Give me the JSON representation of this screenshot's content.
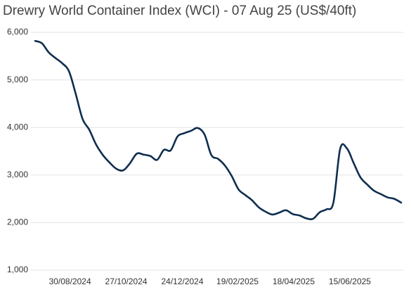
{
  "chart_data": {
    "type": "line",
    "title": "Drewry World Container Index (WCI) - 07 Aug 25 (US$/40ft)",
    "x": [
      "2024-07-25",
      "2024-08-01",
      "2024-08-08",
      "2024-08-15",
      "2024-08-22",
      "2024-08-29",
      "2024-09-05",
      "2024-09-12",
      "2024-09-19",
      "2024-09-26",
      "2024-10-03",
      "2024-10-10",
      "2024-10-17",
      "2024-10-24",
      "2024-10-31",
      "2024-11-07",
      "2024-11-14",
      "2024-11-21",
      "2024-11-28",
      "2024-12-05",
      "2024-12-12",
      "2024-12-19",
      "2024-12-26",
      "2025-01-02",
      "2025-01-09",
      "2025-01-16",
      "2025-01-23",
      "2025-01-30",
      "2025-02-06",
      "2025-02-13",
      "2025-02-20",
      "2025-02-27",
      "2025-03-06",
      "2025-03-13",
      "2025-03-20",
      "2025-03-27",
      "2025-04-03",
      "2025-04-10",
      "2025-04-17",
      "2025-04-24",
      "2025-05-01",
      "2025-05-08",
      "2025-05-15",
      "2025-05-22",
      "2025-05-29",
      "2025-06-05",
      "2025-06-12",
      "2025-06-19",
      "2025-06-26",
      "2025-07-03",
      "2025-07-10",
      "2025-07-17",
      "2025-07-24",
      "2025-07-31",
      "2025-08-07"
    ],
    "series": [
      {
        "name": "WCI",
        "color": "#0f2e4f",
        "values": [
          5820,
          5770,
          5580,
          5460,
          5350,
          5180,
          4700,
          4180,
          3950,
          3640,
          3420,
          3260,
          3130,
          3100,
          3250,
          3450,
          3430,
          3400,
          3320,
          3530,
          3520,
          3810,
          3880,
          3930,
          3990,
          3850,
          3420,
          3340,
          3200,
          2980,
          2700,
          2580,
          2470,
          2320,
          2230,
          2170,
          2210,
          2260,
          2180,
          2150,
          2090,
          2080,
          2220,
          2280,
          2420,
          3550,
          3560,
          3250,
          2950,
          2800,
          2670,
          2600,
          2530,
          2500,
          2420
        ]
      }
    ],
    "xlim": [
      "2024-07-25",
      "2025-08-07"
    ],
    "xticks": [
      {
        "value": "2024-08-30",
        "label": "30/08/2024"
      },
      {
        "value": "2024-10-27",
        "label": "27/10/2024"
      },
      {
        "value": "2024-12-24",
        "label": "24/12/2024"
      },
      {
        "value": "2025-02-19",
        "label": "19/02/2025"
      },
      {
        "value": "2025-04-18",
        "label": "18/04/2025"
      },
      {
        "value": "2025-06-15",
        "label": "15/06/2025"
      }
    ],
    "ylim": [
      1000,
      6000
    ],
    "yticks": [
      {
        "value": 1000,
        "label": "1,000"
      },
      {
        "value": 2000,
        "label": "2,000"
      },
      {
        "value": 3000,
        "label": "3,000"
      },
      {
        "value": 4000,
        "label": "4,000"
      },
      {
        "value": 5000,
        "label": "5,000"
      },
      {
        "value": 6000,
        "label": "6,000"
      }
    ],
    "grid": true
  }
}
